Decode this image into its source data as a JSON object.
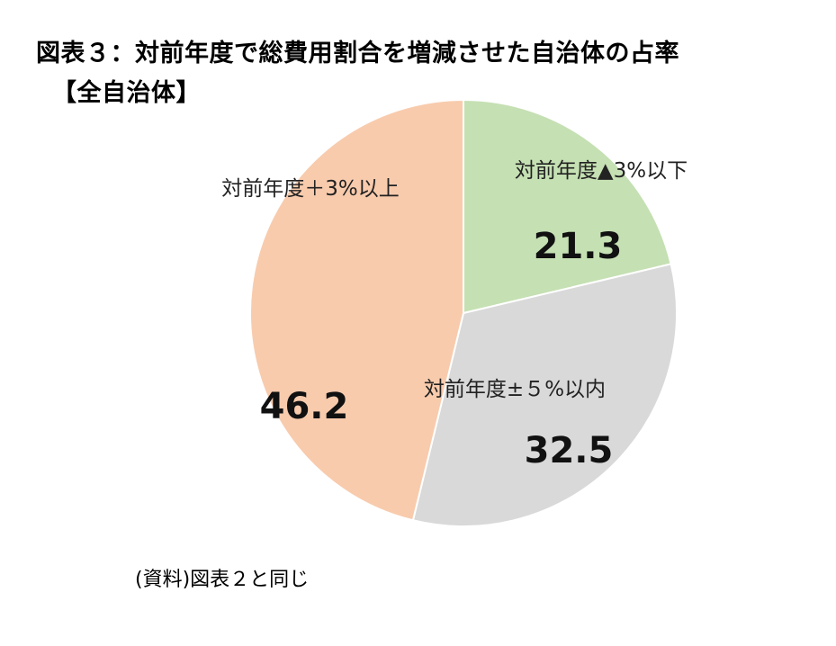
{
  "title": {
    "line1": "図表３：対前年度で総費用割合を増減させた自治体の占率",
    "line2": "【全自治体】"
  },
  "source": "(資料)図表２と同じ",
  "chart_data": {
    "type": "pie",
    "title": "図表３：対前年度で総費用割合を増減させた自治体の占率 【全自治体】",
    "slices": [
      {
        "label": "対前年度▲3%以下",
        "value": 21.3,
        "value_text": "21.3",
        "color": "#c5e0b3"
      },
      {
        "label": "対前年度±５%以内",
        "value": 32.5,
        "value_text": "32.5",
        "color": "#d9d9d9"
      },
      {
        "label": "対前年度＋3%以上",
        "value": 46.2,
        "value_text": "46.2",
        "color": "#f8cbad"
      }
    ],
    "start": "12 o'clock",
    "direction": "clockwise"
  }
}
